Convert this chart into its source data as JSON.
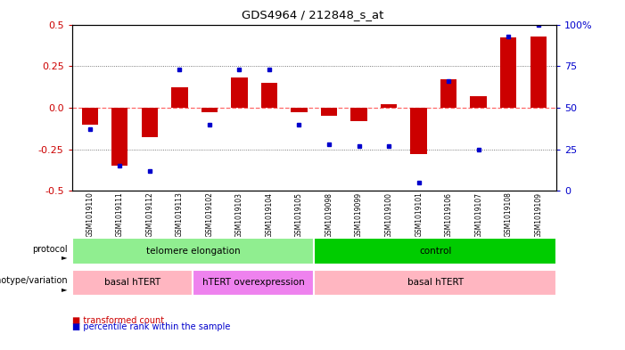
{
  "title": "GDS4964 / 212848_s_at",
  "samples": [
    "GSM1019110",
    "GSM1019111",
    "GSM1019112",
    "GSM1019113",
    "GSM1019102",
    "GSM1019103",
    "GSM1019104",
    "GSM1019105",
    "GSM1019098",
    "GSM1019099",
    "GSM1019100",
    "GSM1019101",
    "GSM1019106",
    "GSM1019107",
    "GSM1019108",
    "GSM1019109"
  ],
  "red_values": [
    -0.1,
    -0.35,
    -0.18,
    0.12,
    -0.03,
    0.18,
    0.15,
    -0.03,
    -0.05,
    -0.08,
    0.02,
    -0.28,
    0.17,
    0.07,
    0.42,
    0.43
  ],
  "blue_pct": [
    37,
    15,
    12,
    73,
    40,
    73,
    73,
    40,
    28,
    27,
    27,
    5,
    66,
    25,
    93,
    100
  ],
  "protocol_groups": [
    {
      "label": "telomere elongation",
      "start": 0,
      "end": 7,
      "color": "#90EE90"
    },
    {
      "label": "control",
      "start": 8,
      "end": 15,
      "color": "#00CC00"
    }
  ],
  "genotype_groups": [
    {
      "label": "basal hTERT",
      "start": 0,
      "end": 3,
      "color": "#FFB6C1"
    },
    {
      "label": "hTERT overexpression",
      "start": 4,
      "end": 7,
      "color": "#EE82EE"
    },
    {
      "label": "basal hTERT",
      "start": 8,
      "end": 15,
      "color": "#FFB6C1"
    }
  ],
  "ylim": [
    -0.5,
    0.5
  ],
  "yticks_left": [
    -0.5,
    -0.25,
    0.0,
    0.25,
    0.5
  ],
  "yticks_right": [
    0,
    25,
    50,
    75,
    100
  ],
  "bar_color": "#CC0000",
  "dot_color": "#0000CC",
  "hline_color": "#FF6666",
  "dotline_color": "#555555",
  "background_color": "#FFFFFF"
}
